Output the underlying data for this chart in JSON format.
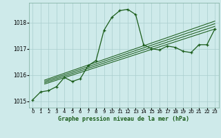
{
  "title": "Graphe pression niveau de la mer (hPa)",
  "background_color": "#ceeaea",
  "grid_color": "#aacece",
  "line_color": "#1a5c1a",
  "xlim": [
    -0.5,
    23.5
  ],
  "ylim": [
    1014.75,
    1018.75
  ],
  "yticks": [
    1015,
    1016,
    1017,
    1018
  ],
  "xticks": [
    0,
    1,
    2,
    3,
    4,
    5,
    6,
    7,
    8,
    9,
    10,
    11,
    12,
    13,
    14,
    15,
    16,
    17,
    18,
    19,
    20,
    21,
    22,
    23
  ],
  "series1_x": [
    0,
    1,
    2,
    3,
    4,
    5,
    6,
    7,
    8,
    9,
    10,
    11,
    12,
    13,
    14,
    15,
    16,
    17,
    18,
    19,
    20,
    21,
    22,
    23
  ],
  "series1_y": [
    1015.05,
    1015.35,
    1015.4,
    1015.55,
    1015.9,
    1015.75,
    1015.85,
    1016.35,
    1016.55,
    1017.7,
    1018.2,
    1018.45,
    1018.5,
    1018.3,
    1017.15,
    1017.0,
    1016.95,
    1017.1,
    1017.05,
    1016.9,
    1016.85,
    1017.15,
    1017.15,
    1017.75
  ],
  "trend_lines": [
    {
      "x0": 1.5,
      "y0": 1015.7,
      "x1": 23,
      "y1": 1017.85
    },
    {
      "x0": 1.5,
      "y0": 1015.75,
      "x1": 23,
      "y1": 1017.95
    },
    {
      "x0": 1.5,
      "y0": 1015.8,
      "x1": 23,
      "y1": 1018.05
    },
    {
      "x0": 1.5,
      "y0": 1015.65,
      "x1": 23,
      "y1": 1017.75
    }
  ]
}
